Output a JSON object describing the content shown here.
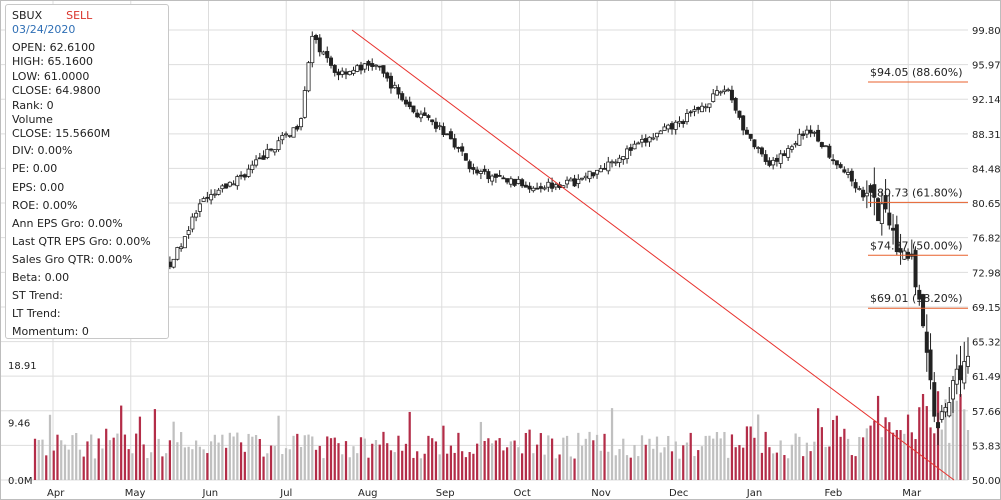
{
  "header": {
    "ticker": "SBUX",
    "signal": "SELL",
    "date": "03/24/2020"
  },
  "info_panel": {
    "open": "OPEN: 62.6100",
    "high": "HIGH: 65.1600",
    "low": "LOW: 61.0000",
    "close": "CLOSE: 64.9800",
    "rank": "Rank: 0",
    "volume_label": "Volume",
    "volume_close": "CLOSE: 15.5660M",
    "div": "DIV: 0.00%",
    "pe": "PE: 0.00",
    "eps": "EPS: 0.00",
    "roe": "ROE: 0.00%",
    "ann_eps_gro": "Ann EPS Gro: 0.00%",
    "last_qtr_eps_gro": "Last QTR EPS Gro: 0.00%",
    "sales_gro_qtr": "Sales Gro QTR: 0.00%",
    "beta": "Beta: 0.00",
    "st_trend": "ST Trend:",
    "lt_trend": "LT Trend:",
    "momentum": "Momentum: 0"
  },
  "colors": {
    "up_volume": "#c0c0c0",
    "down_volume": "#b32d48",
    "fib_line": "#e8602c",
    "trend_line": "#e8322e",
    "candle": "#222222",
    "grid": "#dddddd",
    "signal": "#d9342b",
    "date": "#2f6fb5"
  },
  "chart_data": {
    "type": "candlestick",
    "ticker": "SBUX",
    "x_axis": {
      "labels": [
        "Apr",
        "May",
        "Jun",
        "Jul",
        "Aug",
        "Sep",
        "Oct",
        "Nov",
        "Dec",
        "Jan",
        "Feb",
        "Mar"
      ]
    },
    "price_axis": {
      "position": "right",
      "ticks": [
        "99.80",
        "95.97",
        "92.14",
        "88.31",
        "84.48",
        "80.65",
        "76.82",
        "72.98",
        "69.15",
        "65.32",
        "61.49",
        "57.66",
        "53.83",
        "50.00"
      ],
      "range": [
        50.0,
        99.8
      ]
    },
    "volume_axis": {
      "position": "left",
      "ticks": [
        "18.91",
        "9.46",
        "0.0M"
      ],
      "range": [
        0,
        18.91
      ]
    },
    "price_series": [
      [
        "2019-04",
        74.8
      ],
      [
        "2019-05",
        77.1
      ],
      [
        "2019-06",
        74.3
      ],
      [
        "2019-07",
        84.0
      ],
      [
        "2019-08",
        96.0
      ],
      [
        "2019-09",
        95.0
      ],
      [
        "2019-10",
        85.0
      ],
      [
        "2019-11",
        83.5
      ],
      [
        "2019-12",
        86.5
      ],
      [
        "2020-01",
        88.0
      ],
      [
        "2020-02",
        88.5
      ],
      [
        "2020-03",
        64.98
      ]
    ],
    "key_points": {
      "high": 99.0,
      "high_month": "Aug",
      "feb_top": 93.5,
      "march_low": 55.0,
      "last_close": 64.98
    },
    "fibonacci": [
      {
        "price": 94.05,
        "label": "$94.05 (88.60%)"
      },
      {
        "price": 80.73,
        "label": "$80.73 (61.80%)"
      },
      {
        "price": 74.87,
        "label": "$74.87 (50.00%)"
      },
      {
        "price": 69.01,
        "label": "$69.01 (38.20%)"
      }
    ],
    "trend_line": {
      "from": 99.8,
      "to": 50.0
    }
  }
}
